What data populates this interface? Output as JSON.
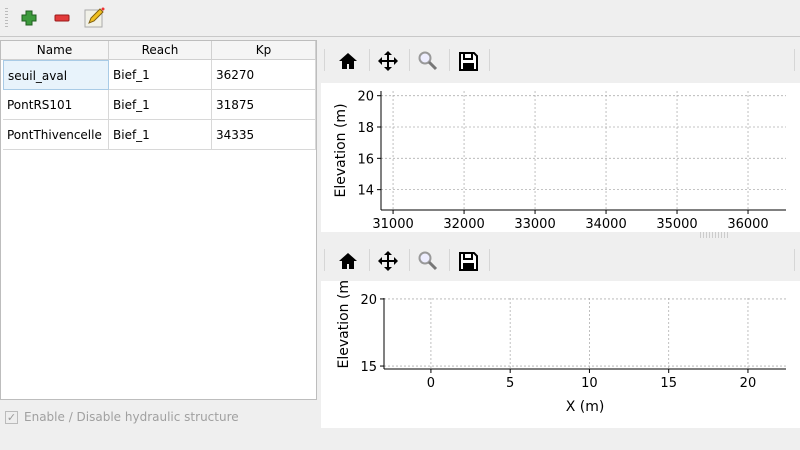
{
  "toolbar": {
    "items": [
      {
        "icon": "add-icon"
      },
      {
        "icon": "remove-icon"
      },
      {
        "icon": "edit-icon"
      }
    ]
  },
  "table": {
    "columns": [
      "Name",
      "Reach",
      "Kp"
    ],
    "rows": [
      [
        "seuil_aval",
        "Bief_1",
        "36270"
      ],
      [
        "PontRS101",
        "Bief_1",
        "31875"
      ],
      [
        "PontThivencelle",
        "Bief_1",
        "34335"
      ]
    ]
  },
  "checkbox": {
    "label": "Enable / Disable hydraulic structure",
    "checked": true,
    "enabled": false
  },
  "plot_toolbar": {
    "icons": [
      "home-icon",
      "pan-icon",
      "zoom-icon",
      "save-icon"
    ]
  },
  "chart_data": [
    {
      "type": "line",
      "xlabel": "",
      "ylabel": "Elevation (m)",
      "xlim": [
        30830,
        36535
      ],
      "ylim": [
        12.7,
        20.3
      ],
      "xticks": [
        31000,
        32000,
        33000,
        34000,
        35000,
        36000
      ],
      "yticks": [
        14,
        16,
        18,
        20
      ],
      "grid": true,
      "series": []
    },
    {
      "type": "line",
      "xlabel": "X (m)",
      "ylabel": "Elevation (m)",
      "xlim": [
        -2.96,
        22.4
      ],
      "ylim": [
        14.78,
        20.07
      ],
      "xticks": [
        0,
        5,
        10,
        15,
        20
      ],
      "yticks": [
        15,
        20
      ],
      "grid": true,
      "series": []
    }
  ]
}
